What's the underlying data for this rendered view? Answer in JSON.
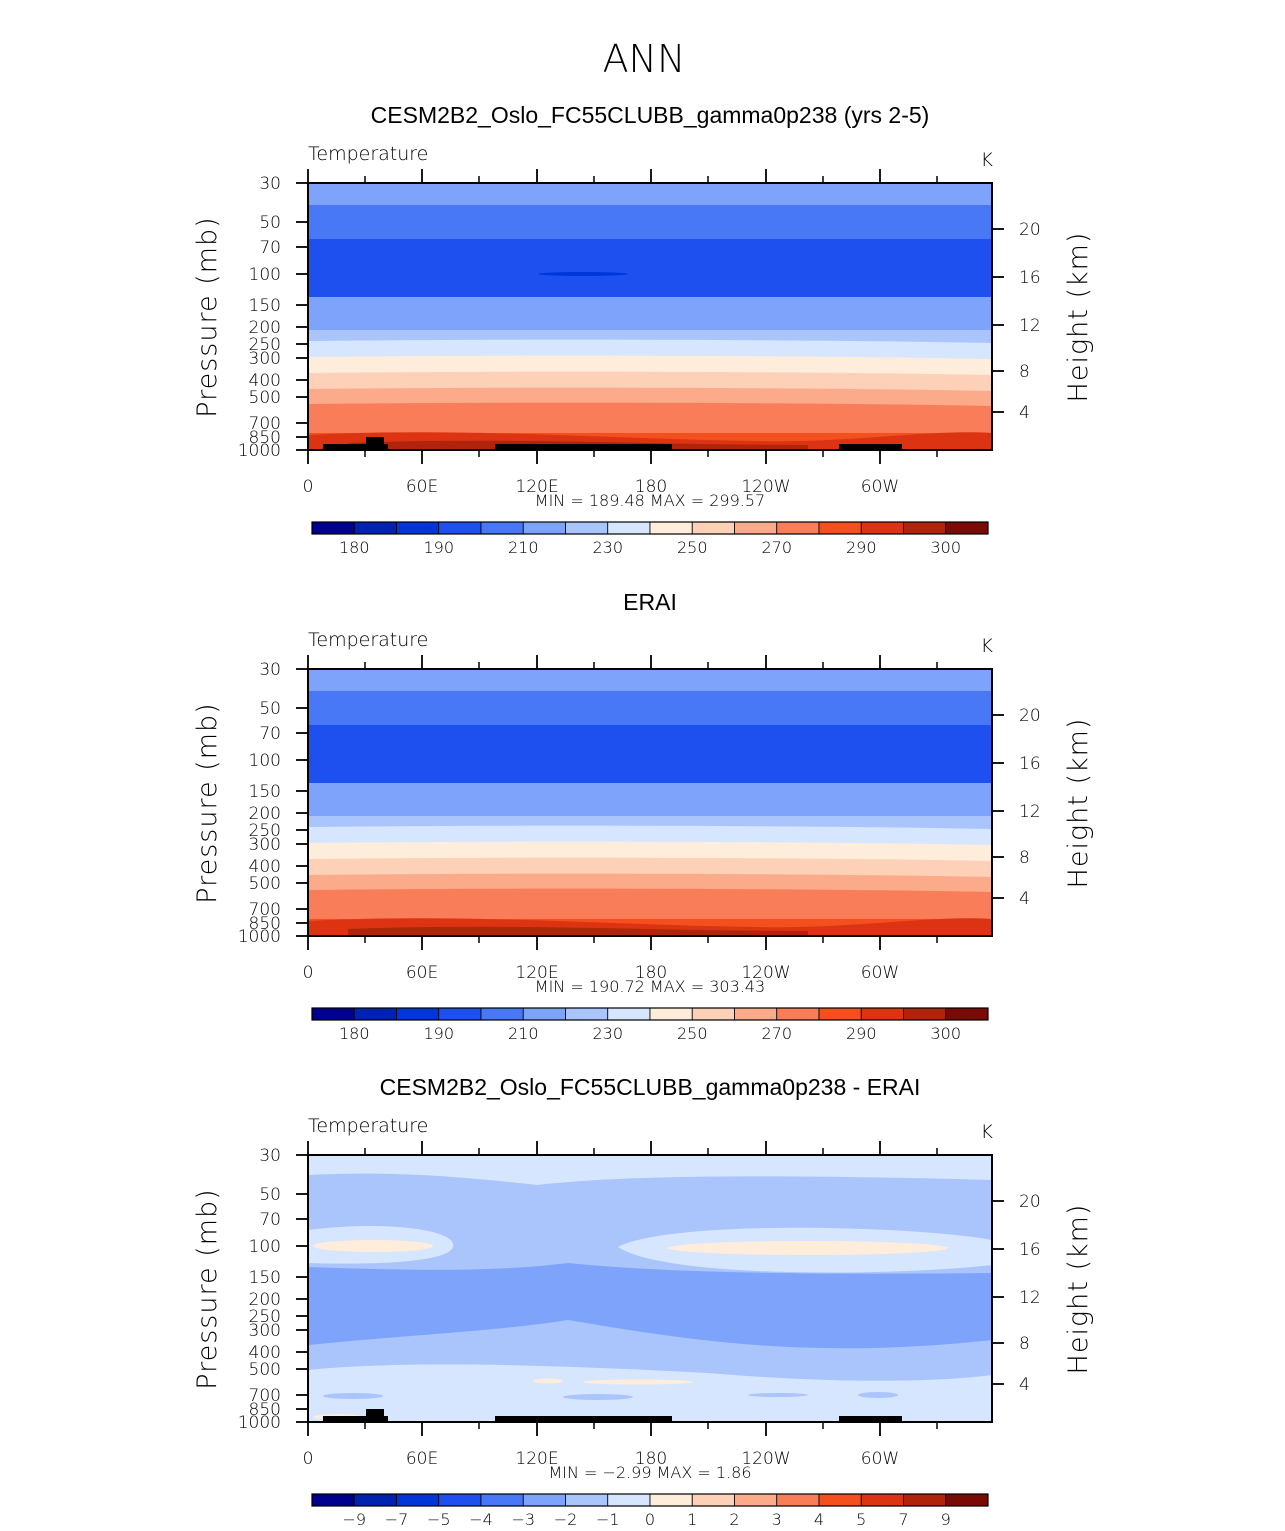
{
  "figure_title": "ANN",
  "chart_data": [
    {
      "type": "heatmap",
      "title": "CESM2B2_Oslo_FC55CLUBB_gamma0p238 (yrs 2-5)",
      "subtitle_left": "Temperature",
      "units": "K",
      "ylabel": "Pressure (mb)",
      "ylabel2": "Height (km)",
      "x_ticks": [
        "0",
        "60E",
        "120E",
        "180",
        "120W",
        "60W"
      ],
      "y_ticks": [
        "30",
        "50",
        "70",
        "100",
        "150",
        "200",
        "250",
        "300",
        "400",
        "500",
        "700",
        "850",
        "1000"
      ],
      "y2_ticks": [
        "20",
        "16",
        "12",
        "8",
        "4"
      ],
      "stats": "MIN = 189.48   MAX = 299.57",
      "min": 189.48,
      "max": 299.57,
      "colorbar_labels": [
        "180",
        "190",
        "210",
        "230",
        "250",
        "270",
        "290",
        "300"
      ],
      "levels_top_to_bottom": [
        210,
        200,
        195,
        200,
        210,
        220,
        230,
        240,
        250,
        255,
        260,
        265,
        270,
        275,
        280,
        285,
        290,
        295
      ],
      "land": true
    },
    {
      "type": "heatmap",
      "title": "ERAI",
      "subtitle_left": "Temperature",
      "units": "K",
      "ylabel": "Pressure (mb)",
      "ylabel2": "Height (km)",
      "x_ticks": [
        "0",
        "60E",
        "120E",
        "180",
        "120W",
        "60W"
      ],
      "y_ticks": [
        "30",
        "50",
        "70",
        "100",
        "150",
        "200",
        "250",
        "300",
        "400",
        "500",
        "700",
        "850",
        "1000"
      ],
      "y2_ticks": [
        "20",
        "16",
        "12",
        "8",
        "4"
      ],
      "stats": "MIN = 190.72   MAX = 303.43",
      "min": 190.72,
      "max": 303.43,
      "colorbar_labels": [
        "180",
        "190",
        "210",
        "230",
        "250",
        "270",
        "290",
        "300"
      ],
      "levels_top_to_bottom": [
        210,
        200,
        195,
        200,
        210,
        220,
        230,
        240,
        250,
        255,
        260,
        265,
        270,
        275,
        280,
        285,
        290,
        295
      ],
      "land": false
    },
    {
      "type": "heatmap",
      "title": "CESM2B2_Oslo_FC55CLUBB_gamma0p238 - ERAI",
      "subtitle_left": "Temperature",
      "units": "K",
      "ylabel": "Pressure (mb)",
      "ylabel2": "Height (km)",
      "x_ticks": [
        "0",
        "60E",
        "120E",
        "180",
        "120W",
        "60W"
      ],
      "y_ticks": [
        "30",
        "50",
        "70",
        "100",
        "150",
        "200",
        "250",
        "300",
        "400",
        "500",
        "700",
        "850",
        "1000"
      ],
      "y2_ticks": [
        "20",
        "16",
        "12",
        "8",
        "4"
      ],
      "stats": "MIN =    −2.99   MAX =     1.86",
      "min": -2.99,
      "max": 1.86,
      "colorbar_labels": [
        "−9",
        "−7",
        "−5",
        "−4",
        "−3",
        "−2",
        "−1",
        "0",
        "1",
        "2",
        "3",
        "4",
        "5",
        "7",
        "9"
      ],
      "land": true
    }
  ],
  "colors": {
    "palette": [
      "#00008f",
      "#0022b0",
      "#0036d8",
      "#1e50f0",
      "#4878f5",
      "#7ea3fa",
      "#aac4fc",
      "#d6e6fe",
      "#ffeddc",
      "#fdd0b8",
      "#fbaa8a",
      "#f87d58",
      "#f4501e",
      "#dc3412",
      "#b0240c",
      "#7a0a05"
    ],
    "land": "#000000",
    "axes": "#000000"
  }
}
